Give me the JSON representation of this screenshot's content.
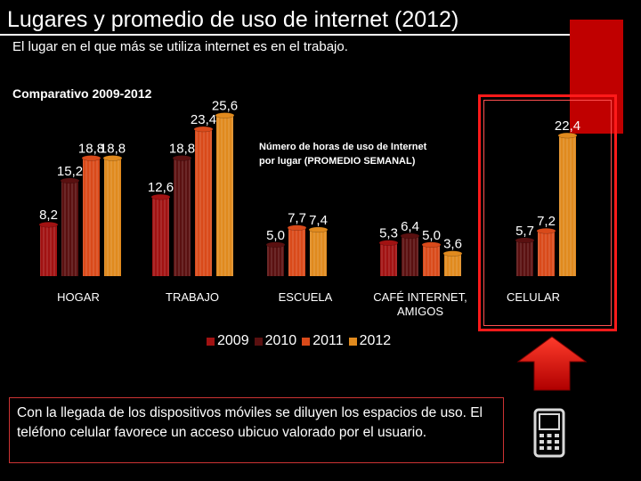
{
  "slide": {
    "title": "Lugares y promedio de uso de internet (2012)",
    "subtitle": "El lugar en el que más se utiliza internet es en el trabajo.",
    "note": "Con la llegada de los dispositivos móviles se diluyen los espacios de uso.  El teléfono celular favorece un acceso ubicuo valorado por el usuario."
  },
  "colors": {
    "background": "#000000",
    "accent_red": "#c00000",
    "highlight": "#ff1a1a",
    "series": [
      "#a11212",
      "#5a1010",
      "#d94a1a",
      "#e08a1e"
    ]
  },
  "icons": [
    "up-arrow-icon",
    "mobile-phone-icon"
  ],
  "chart_data": {
    "type": "bar",
    "title": "Comparativo 2009-2012",
    "annotation": "Número de horas de uso de Internet por lugar (PROMEDIO SEMANAL)",
    "categories": [
      "HOGAR",
      "TRABAJO",
      "ESCUELA",
      "CAFÉ INTERNET, AMIGOS",
      "CELULAR"
    ],
    "series": [
      {
        "name": "2009",
        "values": [
          8.2,
          12.6,
          null,
          5.3,
          null
        ]
      },
      {
        "name": "2010",
        "values": [
          15.2,
          18.8,
          5.0,
          6.4,
          5.7
        ]
      },
      {
        "name": "2011",
        "values": [
          18.8,
          23.4,
          7.7,
          5.0,
          7.2
        ]
      },
      {
        "name": "2012",
        "values": [
          18.8,
          25.6,
          7.4,
          3.6,
          22.4
        ]
      }
    ],
    "value_labels": [
      [
        "8,2",
        "12,6",
        "",
        "5,3",
        ""
      ],
      [
        "15,2",
        "18,8",
        "5,0",
        "6,4",
        "5,7"
      ],
      [
        "18,8",
        "23,4",
        "7,7",
        "5,0",
        "7,2"
      ],
      [
        "18,8",
        "25,6",
        "7,4",
        "3,6",
        "22,4"
      ]
    ],
    "ylim": [
      0,
      28
    ],
    "legend_position": "bottom"
  }
}
